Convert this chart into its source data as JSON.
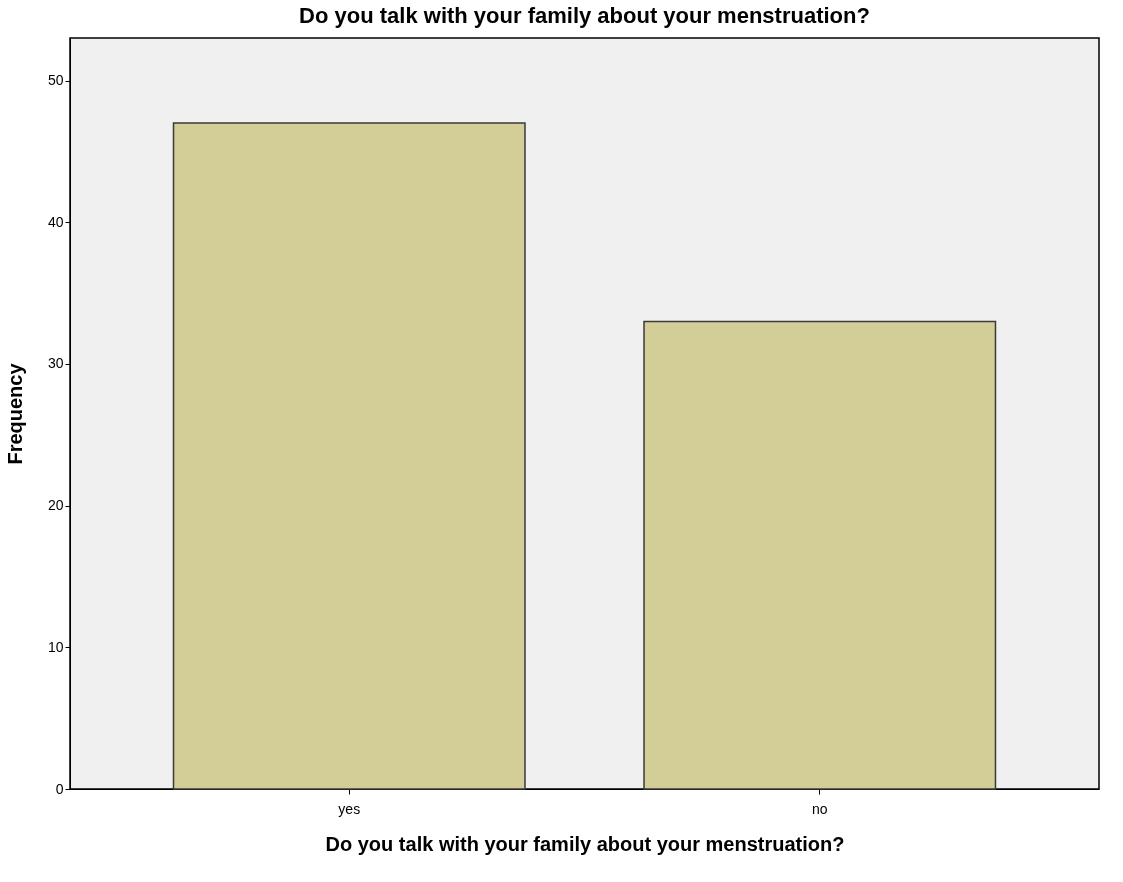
{
  "chart_data": {
    "type": "bar",
    "title": "Do you talk with your family about your menstruation?",
    "xlabel": "Do you talk with your family about your menstruation?",
    "ylabel": "Frequency",
    "categories": [
      "yes",
      "no"
    ],
    "values": [
      47,
      33
    ],
    "color": "#d3ce97",
    "ylim": [
      0,
      53
    ],
    "yticks": [
      0,
      10,
      20,
      30,
      40,
      50
    ],
    "grid": false,
    "legend": false
  }
}
